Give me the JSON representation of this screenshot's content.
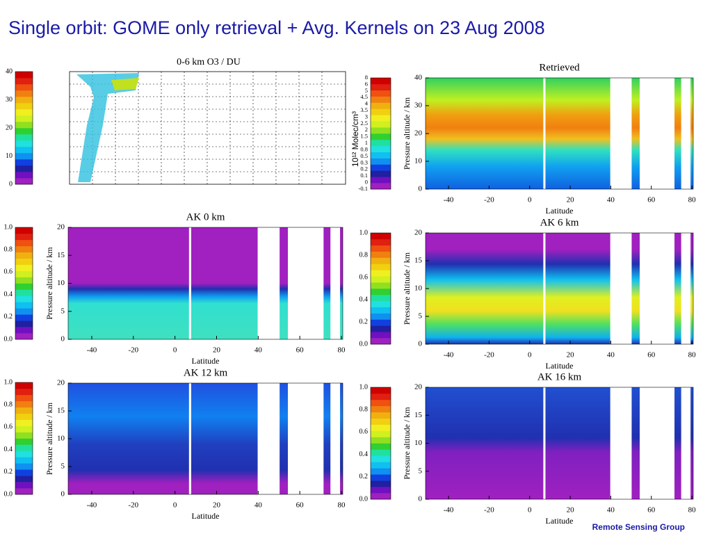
{
  "title": "Single orbit: GOME only retrieval + Avg. Kernels on 23 Aug 2008",
  "footer": "Remote Sensing Group",
  "map": {
    "title": "0-6 km O3 / DU",
    "colorbar_ticks": [
      "0",
      "10",
      "20",
      "30",
      "40"
    ]
  },
  "retrieved": {
    "title": "Retrieved",
    "y_label": "Pressure altitude / km",
    "x_label": "Latitude",
    "yticks": [
      "0",
      "10",
      "20",
      "30",
      "40"
    ],
    "xticks": [
      "-40",
      "-20",
      "0",
      "20",
      "40",
      "60",
      "80"
    ],
    "colorbar_label": "10¹² Molec/cm³",
    "colorbar_ticks": [
      "-0.1",
      "0",
      "0.1",
      "0.2",
      "0.3",
      "0.5",
      "0.8",
      "1",
      "1.5",
      "2",
      "2.5",
      "3",
      "3.5",
      "4",
      "4.5",
      "5",
      "6",
      "8"
    ]
  },
  "ak0": {
    "title": "AK 0 km",
    "y_label": "Pressure altitude / km",
    "x_label": "Latitude",
    "yticks": [
      "0",
      "5",
      "10",
      "15",
      "20"
    ],
    "xticks": [
      "-40",
      "-20",
      "0",
      "20",
      "40",
      "60",
      "80"
    ],
    "colorbar_ticks": [
      "0.0",
      "0.2",
      "0.4",
      "0.6",
      "0.8",
      "1.0"
    ]
  },
  "ak6": {
    "title": "AK 6 km",
    "y_label": "Pressure altitude / km",
    "x_label": "Latitude",
    "yticks": [
      "0",
      "5",
      "10",
      "15",
      "20"
    ],
    "xticks": [
      "-40",
      "-20",
      "0",
      "20",
      "40",
      "60",
      "80"
    ],
    "colorbar_ticks": [
      "0.0",
      "0.2",
      "0.4",
      "0.6",
      "0.8",
      "1.0"
    ]
  },
  "ak12": {
    "title": "AK 12 km",
    "y_label": "Pressure altitude / km",
    "x_label": "Latitude",
    "yticks": [
      "0",
      "5",
      "10",
      "15",
      "20"
    ],
    "xticks": [
      "-40",
      "-20",
      "0",
      "20",
      "40",
      "60",
      "80"
    ],
    "colorbar_ticks": [
      "0.0",
      "0.2",
      "0.4",
      "0.6",
      "0.8",
      "1.0"
    ]
  },
  "ak16": {
    "title": "AK 16 km",
    "y_label": "Pressure altitude / km",
    "x_label": "Latitude",
    "yticks": [
      "0",
      "5",
      "10",
      "15",
      "20"
    ],
    "xticks": [
      "-40",
      "-20",
      "0",
      "20",
      "40",
      "60",
      "80"
    ],
    "colorbar_ticks": [
      "0.0",
      "0.2",
      "0.4",
      "0.6",
      "0.8",
      "1.0"
    ]
  }
}
